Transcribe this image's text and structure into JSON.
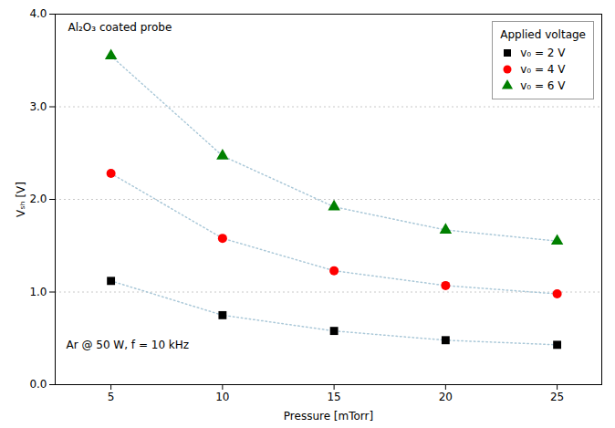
{
  "chart_data": {
    "type": "line",
    "x": [
      5,
      10,
      15,
      20,
      25
    ],
    "series": [
      {
        "name": "v₀ = 2 V",
        "color": "black",
        "marker": "square",
        "values": [
          1.12,
          0.75,
          0.58,
          0.48,
          0.43
        ]
      },
      {
        "name": "v₀ = 4 V",
        "color": "red",
        "marker": "circle",
        "values": [
          2.28,
          1.58,
          1.23,
          1.07,
          0.98
        ]
      },
      {
        "name": "v₀ = 6 V",
        "color": "green",
        "marker": "triangle",
        "values": [
          3.55,
          2.47,
          1.92,
          1.67,
          1.55
        ]
      }
    ],
    "color": "#aac8d8",
    "line_style": "dotted",
    "xlabel": "Pressure [mTorr]",
    "ylabel": "Vₛₕ [V]",
    "xlim": [
      2.5,
      27
    ],
    "ylim": [
      0,
      4
    ],
    "xticks": [
      5,
      10,
      15,
      20,
      25
    ],
    "yticks": [
      0,
      1,
      2,
      3,
      4
    ],
    "grid": true,
    "legend": "upper right",
    "legend_title": "Applied voltage",
    "annotations": [
      "Al₂O₃ coated probe",
      "Ar @ 50 W, f = 10 kHz"
    ]
  }
}
